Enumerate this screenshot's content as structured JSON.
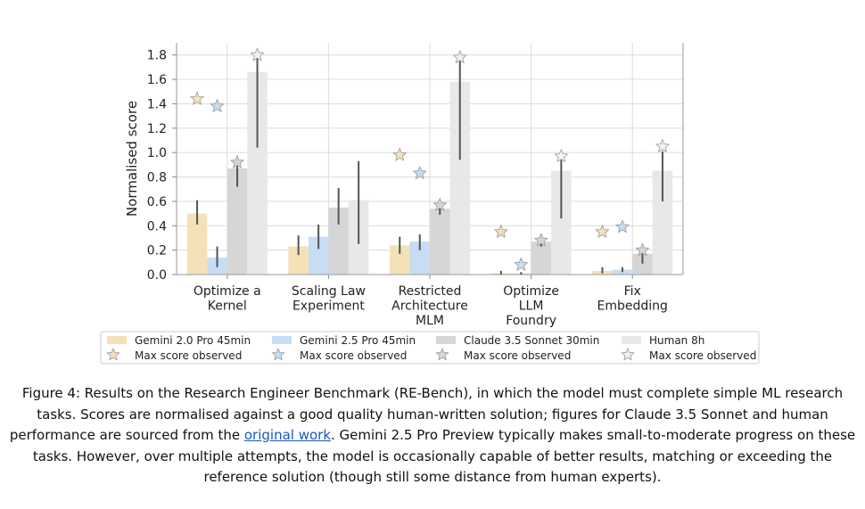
{
  "chart_data": {
    "type": "bar",
    "ylabel": "Normalised score",
    "ylim": [
      0,
      1.9
    ],
    "yticks": [
      "0.0",
      "0.2",
      "0.4",
      "0.6",
      "0.8",
      "1.0",
      "1.2",
      "1.4",
      "1.6",
      "1.8"
    ],
    "grid": true,
    "categories": [
      [
        "Optimize a",
        "Kernel"
      ],
      [
        "Scaling Law",
        "Experiment"
      ],
      [
        "Restricted",
        "Architecture",
        "MLM"
      ],
      [
        "Optimize",
        "LLM",
        "Foundry"
      ],
      [
        "Fix",
        "Embedding"
      ]
    ],
    "series": [
      {
        "name": "Gemini 2.0 Pro 45min",
        "color": "#f4e1b8",
        "star_color": "#f4e1b8",
        "values": [
          0.5,
          0.23,
          0.24,
          0.01,
          0.03
        ],
        "err_low": [
          0.41,
          0.16,
          0.17,
          0.0,
          0.01
        ],
        "err_high": [
          0.61,
          0.32,
          0.31,
          0.03,
          0.06
        ],
        "max_observed": [
          1.44,
          null,
          0.98,
          0.35,
          0.35
        ]
      },
      {
        "name": "Gemini 2.5 Pro 45min",
        "color": "#c6ddf4",
        "star_color": "#c6ddf4",
        "values": [
          0.14,
          0.31,
          0.27,
          0.01,
          0.04
        ],
        "err_low": [
          0.06,
          0.21,
          0.2,
          0.0,
          0.02
        ],
        "err_high": [
          0.23,
          0.41,
          0.33,
          0.02,
          0.06
        ],
        "max_observed": [
          1.38,
          null,
          0.83,
          0.08,
          0.39
        ]
      },
      {
        "name": "Claude 3.5 Sonnet 30min",
        "color": "#d6d6d6",
        "star_color": "#d6d6d6",
        "values": [
          0.87,
          0.55,
          0.54,
          0.27,
          0.17
        ],
        "err_low": [
          0.72,
          0.41,
          0.49,
          0.23,
          0.09
        ],
        "err_high": [
          0.92,
          0.71,
          0.59,
          0.31,
          0.24
        ],
        "max_observed": [
          0.92,
          null,
          0.57,
          0.28,
          0.2
        ]
      },
      {
        "name": "Human 8h",
        "color": "#e8e8e8",
        "star_color": "#f2f2f2",
        "values": [
          1.66,
          0.61,
          1.58,
          0.85,
          0.85
        ],
        "err_low": [
          1.04,
          0.25,
          0.94,
          0.46,
          0.6
        ],
        "err_high": [
          1.8,
          0.93,
          1.78,
          0.97,
          1.01
        ],
        "max_observed": [
          1.8,
          null,
          1.78,
          0.97,
          1.05
        ]
      }
    ],
    "legend": {
      "position": "bottom",
      "max_label": "Max score observed"
    }
  },
  "caption": {
    "before_link": "Figure 4: Results on the Research Engineer Benchmark (RE-Bench), in which the model must complete simple ML research tasks. Scores are normalised against a good quality human-written solution; figures for Claude 3.5 Sonnet and human performance are sourced from the ",
    "link_text": "original work",
    "after_link": ". Gemini 2.5 Pro Preview typically makes small-to-moderate progress on these tasks. However, over multiple attempts, the model is occasionally capable of better results, matching or exceeding the reference solution (though still some distance from human experts)."
  }
}
